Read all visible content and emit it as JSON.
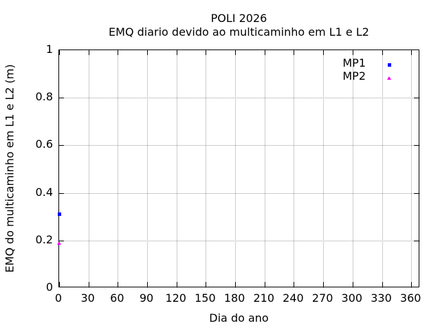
{
  "chart_data": {
    "type": "scatter",
    "title": "POLI 2026",
    "subtitle": "EMQ diario devido ao multicaminho em L1 e L2",
    "xlabel": "Dia do ano",
    "ylabel": "EMQ do multicaminho em L1 e L2 (m)",
    "xlim": [
      0,
      369
    ],
    "ylim": [
      0,
      1
    ],
    "x_ticks": [
      0,
      30,
      60,
      90,
      120,
      150,
      180,
      210,
      240,
      270,
      300,
      330,
      360
    ],
    "x_tick_labels": [
      "0",
      "30",
      "60",
      "90",
      "120",
      "150",
      "180",
      "210",
      "240",
      "270",
      "300",
      "330",
      "360"
    ],
    "y_ticks": [
      0,
      0.2,
      0.4,
      0.6,
      0.8,
      1
    ],
    "y_tick_labels": [
      "0",
      "0.2",
      "0.4",
      "0.6",
      "0.8",
      "1"
    ],
    "grid": true,
    "grid_style": "dotted",
    "legend_position": "top-right",
    "colors": {
      "background": "#ffffff",
      "border": "#000000",
      "grid": "#9b9b9b",
      "text": "#000000",
      "mp1": "#0000ff",
      "mp2": "#ff00ff"
    },
    "series": [
      {
        "name": "MP1",
        "marker": "square",
        "color": "#0000ff",
        "points": [
          {
            "x": 0,
            "y": 0.31
          }
        ]
      },
      {
        "name": "MP2",
        "marker": "triangle",
        "color": "#ff00ff",
        "points": [
          {
            "x": 0,
            "y": 0.19
          }
        ]
      }
    ]
  }
}
